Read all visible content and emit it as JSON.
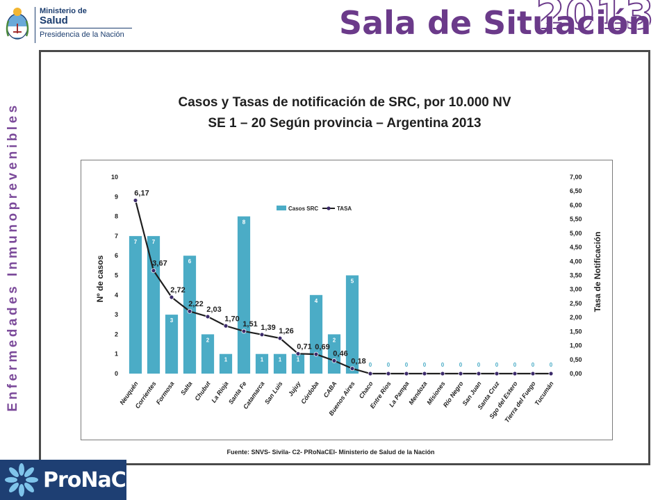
{
  "header": {
    "ministry_line1": "Ministerio de",
    "ministry_line2": "Salud",
    "ministry_line3": "Presidencia de la Nación",
    "title": "Sala de Situación",
    "year": "2013"
  },
  "side_label": "Enfermedades Inmunoprevenibles",
  "chart_title": {
    "line1": "Casos y Tasas de notificación de SRC, por 10.000 NV",
    "line2": "SE 1 – 20 Según provincia – Argentina 2013"
  },
  "source": "Fuente: SNVS- Sivila- C2- PRoNaCEI- Ministerio de Salud de la Nación",
  "logo_bottom": "ProNaCEI",
  "colors": {
    "bar": "#4bacc6",
    "line": "#1f1f1f",
    "marker": "#3b2a6a",
    "header_purple": "#6b3a8a",
    "side_label": "#7b4a9a"
  },
  "chart_data": {
    "type": "bar",
    "categories": [
      "Neuquén",
      "Corrientes",
      "Formosa",
      "Salta",
      "Chubut",
      "La Rioja",
      "Santa Fe",
      "Catamarca",
      "San Luis",
      "Jujuy",
      "Córdoba",
      "CABA",
      "Buenos Aires",
      "Chaco",
      "Entre Ríos",
      "La Pampa",
      "Mendoza",
      "Misiones",
      "Río Negro",
      "San Juan",
      "Santa Cruz",
      "Sgo del Estero",
      "Tierra del Fuego",
      "Tucumán"
    ],
    "series": [
      {
        "name": "Casos SRC",
        "type": "bar",
        "axis": "left",
        "values": [
          7,
          7,
          3,
          6,
          2,
          1,
          8,
          1,
          1,
          1,
          4,
          2,
          5,
          0,
          0,
          0,
          0,
          0,
          0,
          0,
          0,
          0,
          0,
          0
        ],
        "labels": [
          "7",
          "7",
          "3",
          "6",
          "2",
          "1",
          "8",
          "1",
          "1",
          "1",
          "4",
          "2",
          "5",
          "0",
          "0",
          "0",
          "0",
          "0",
          "0",
          "0",
          "0",
          "0",
          "0",
          "0"
        ]
      },
      {
        "name": "TASA",
        "type": "line",
        "axis": "right",
        "values": [
          6.17,
          3.67,
          2.72,
          2.22,
          2.03,
          1.7,
          1.51,
          1.39,
          1.26,
          0.71,
          0.69,
          0.46,
          0.18,
          0,
          0,
          0,
          0,
          0,
          0,
          0,
          0,
          0,
          0,
          0
        ],
        "labels": [
          "6,17",
          "3,67",
          "2,72",
          "2,22",
          "2,03",
          "1,70",
          "1,51",
          "1,39",
          "1,26",
          "0,71",
          "0,69",
          "0,46",
          "0,18",
          "",
          "",
          "",
          "",
          "",
          "",
          "",
          "",
          "",
          "",
          ""
        ]
      }
    ],
    "ylabel": "Nº de casos",
    "y2label": "Tasa de Notificación",
    "ylim": [
      0,
      10
    ],
    "y2lim": [
      0,
      7
    ],
    "yticks": [
      "0",
      "1",
      "2",
      "3",
      "4",
      "5",
      "6",
      "7",
      "8",
      "9",
      "10"
    ],
    "y2ticks": [
      "0,00",
      "0,50",
      "1,00",
      "1,50",
      "2,00",
      "2,50",
      "3,00",
      "3,50",
      "4,00",
      "4,50",
      "5,00",
      "5,50",
      "6,00",
      "6,50",
      "7,00"
    ],
    "legend": "top-center",
    "grid": false
  }
}
